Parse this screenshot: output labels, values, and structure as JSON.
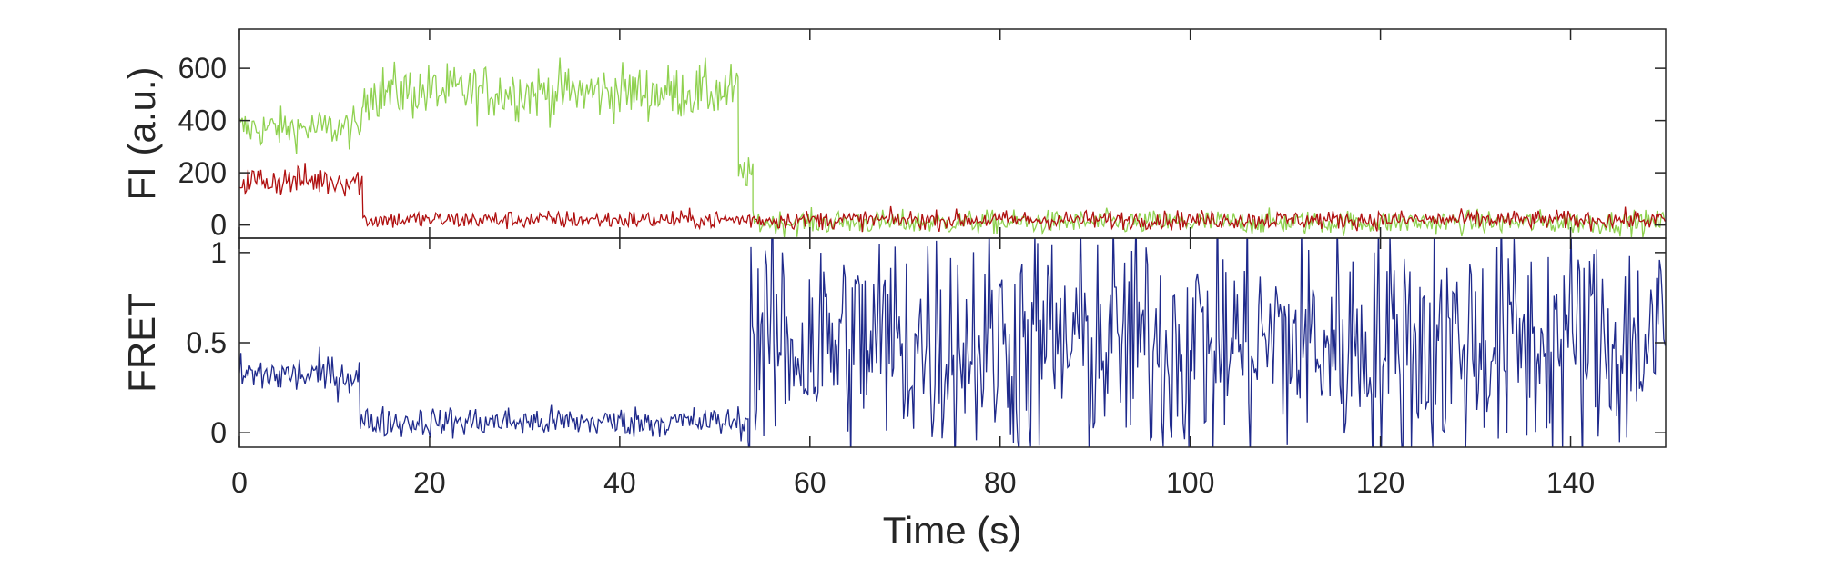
{
  "chart_data": [
    {
      "type": "line",
      "panel": "top",
      "ylabel": "FI (a.u.)",
      "xlim": [
        0,
        150
      ],
      "ylim": [
        -50,
        750
      ],
      "yticks": [
        0,
        200,
        400,
        600
      ],
      "ytick_labels": [
        "0",
        "200",
        "400",
        "600"
      ],
      "series": [
        {
          "color": "#8fd14f",
          "style": "noisy_steps",
          "segments": [
            {
              "x_start": 0,
              "x_end": 13,
              "mean": 370,
              "noise": 150
            },
            {
              "x_start": 13,
              "x_end": 52.5,
              "mean": 510,
              "noise": 210
            },
            {
              "x_start": 52.5,
              "x_end": 54,
              "mean": 200,
              "noise": 120
            },
            {
              "x_start": 54,
              "x_end": 150,
              "mean": 10,
              "noise": 90
            }
          ]
        },
        {
          "color": "#b01010",
          "style": "noisy_steps",
          "segments": [
            {
              "x_start": 0,
              "x_end": 13,
              "mean": 170,
              "noise": 120
            },
            {
              "x_start": 13,
              "x_end": 150,
              "mean": 20,
              "noise": 70
            }
          ]
        }
      ]
    },
    {
      "type": "line",
      "panel": "bottom",
      "ylabel": "FRET",
      "xlabel": "Time (s)",
      "xlim": [
        0,
        150
      ],
      "ylim": [
        -0.08,
        1.08
      ],
      "xticks": [
        0,
        20,
        40,
        60,
        80,
        100,
        120,
        140
      ],
      "xtick_labels": [
        "0",
        "20",
        "40",
        "60",
        "80",
        "100",
        "120",
        "140"
      ],
      "yticks": [
        0,
        0.5,
        1
      ],
      "ytick_labels": [
        "0",
        "0.5",
        "1"
      ],
      "series": [
        {
          "color": "#1f2a8c",
          "style": "noisy_steps",
          "segments": [
            {
              "x_start": 0,
              "x_end": 12.7,
              "mean": 0.32,
              "noise": 0.22
            },
            {
              "x_start": 12.7,
              "x_end": 53.5,
              "mean": 0.06,
              "noise": 0.17
            },
            {
              "x_start": 53.5,
              "x_end": 150,
              "mean": 0.5,
              "noise": 1.3
            }
          ]
        }
      ]
    }
  ]
}
